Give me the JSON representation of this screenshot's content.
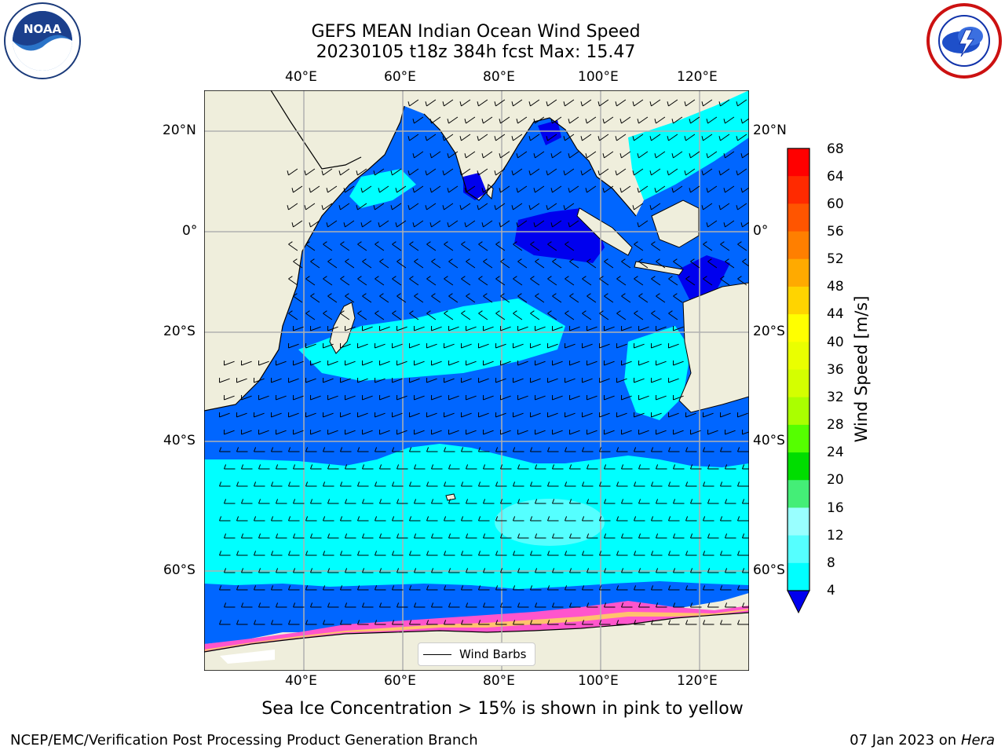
{
  "title": {
    "line1": "GEFS MEAN Indian Ocean Wind Speed",
    "line2": "20230105 t18z 384h fcst   Max: 15.47"
  },
  "map": {
    "lon_ticks_top": [
      "40°E",
      "60°E",
      "80°E",
      "100°E",
      "120°E"
    ],
    "lon_ticks_bottom": [
      "40°E",
      "60°E",
      "80°E",
      "100°E",
      "120°E"
    ],
    "lat_ticks_left": [
      "20°N",
      "0°",
      "20°S",
      "40°S",
      "60°S"
    ],
    "lat_ticks_right": [
      "20°N",
      "0°",
      "20°S",
      "40°S",
      "60°S"
    ],
    "legend_label": "Wind Barbs",
    "colors": {
      "ocean_4_8": "#0066ff",
      "ocean_8_12": "#00ffff",
      "ocean_12_16": "#33ffff",
      "ocean_calm": "#0000ee",
      "land": "#efeedc",
      "sea_ice_pink": "#ff55cc",
      "sea_ice_yellow": "#ffdd55",
      "gridline": "#b0b0b0"
    }
  },
  "colorbar": {
    "label": "Wind Speed [m/s]",
    "ticks": [
      "68",
      "64",
      "60",
      "56",
      "52",
      "48",
      "44",
      "40",
      "36",
      "32",
      "28",
      "24",
      "20",
      "16",
      "12",
      "8",
      "4"
    ],
    "colors": [
      "#ff0000",
      "#ff2a00",
      "#ff5500",
      "#ff7f00",
      "#ffaa00",
      "#ffd400",
      "#ffff00",
      "#eaff00",
      "#d4ff00",
      "#aaff00",
      "#55ff00",
      "#00dd00",
      "#44ee77",
      "#99ffff",
      "#55ffff",
      "#00ffff",
      "#0066ff"
    ],
    "extend_color": "#0000ee"
  },
  "caption": "Sea Ice Concentration > 15% is shown in pink to yellow",
  "footer": {
    "left": "NCEP/EMC/Verification Post Processing Product Generation Branch",
    "right_date": "07 Jan 2023 on ",
    "right_host": "Hera"
  },
  "logos": {
    "left": "noaa-logo",
    "left_text": "NOAA",
    "right": "nws-logo"
  }
}
